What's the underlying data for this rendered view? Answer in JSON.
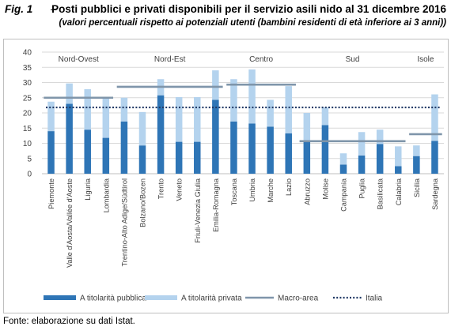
{
  "figure": {
    "label": "Fig. 1",
    "dash": "–",
    "title": "Posti pubblici e privati disponibili per il servizio asili nido al 31 dicembre 2016",
    "subtitle": "(valori percentuali rispetto ai potenziali utenti (bambini residenti di età inferiore ai 3 anni))",
    "source": "Fonte: elaborazione su dati Istat."
  },
  "colors": {
    "public": "#2e75b6",
    "private": "#b4d3ee",
    "macro": "#7f95aa",
    "italia": "#1f3864",
    "grid": "#d9d9d9",
    "axis": "#bfbfbf",
    "text": "#404040"
  },
  "chart_data": {
    "type": "bar",
    "stacked": true,
    "ylim": [
      0,
      40
    ],
    "yticks": [
      0,
      5,
      10,
      15,
      20,
      25,
      30,
      35,
      40
    ],
    "grid": true,
    "legend_position": "bottom",
    "categories": [
      "Piemonte",
      "Valle d'Aosta/Vallée d'Aoste",
      "Liguria",
      "Lombardia",
      "Trentino-Alto Adige/Südtirol",
      "Bolzano/Bozen",
      "Trento",
      "Veneto",
      "Friuli-Venezia Giulia",
      "Emilia-Romagna",
      "Toscana",
      "Umbria",
      "Marche",
      "Lazio",
      "Abruzzo",
      "Molise",
      "Campania",
      "Puglia",
      "Basilicata",
      "Calabria",
      "Sicilia",
      "Sardegna"
    ],
    "series": [
      {
        "name": "A titolarità pubblica",
        "values": [
          14.0,
          23.0,
          14.5,
          11.8,
          17.2,
          9.3,
          25.8,
          10.5,
          10.5,
          24.3,
          17.2,
          16.5,
          15.5,
          13.3,
          10.8,
          16.0,
          3.0,
          6.0,
          9.8,
          2.5,
          5.8,
          10.8
        ]
      },
      {
        "name": "A titolarità privata",
        "values": [
          9.7,
          6.7,
          13.3,
          13.4,
          7.8,
          11.0,
          5.3,
          14.7,
          14.7,
          9.7,
          13.9,
          17.8,
          8.8,
          15.5,
          9.2,
          5.8,
          3.7,
          7.7,
          4.7,
          6.5,
          3.5,
          15.3
        ]
      }
    ],
    "macro_areas": [
      {
        "name": "Nord-Ovest",
        "from": 0,
        "to": 3,
        "value": 25.0
      },
      {
        "name": "Nord-Est",
        "from": 4,
        "to": 9,
        "value": 28.6
      },
      {
        "name": "Centro",
        "from": 10,
        "to": 13,
        "value": 29.3
      },
      {
        "name": "Sud",
        "from": 14,
        "to": 19,
        "value": 10.7
      },
      {
        "name": "Isole",
        "from": 20,
        "to": 21,
        "value": 13.0
      }
    ],
    "macro_series_name": "Macro-area",
    "italia_series_name": "Italia",
    "italia_value": 21.8
  }
}
